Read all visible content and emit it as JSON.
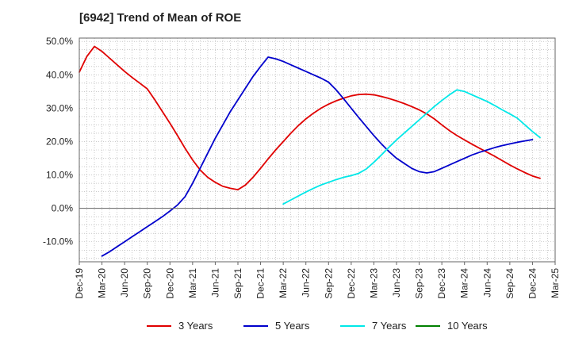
{
  "chart_data": {
    "type": "line",
    "title": "[6942]  Trend of Mean of ROE",
    "xlabel": "",
    "ylabel": "",
    "x_tick_labels": [
      "Dec-19",
      "Mar-20",
      "Jun-20",
      "Sep-20",
      "Dec-20",
      "Mar-21",
      "Jun-21",
      "Sep-21",
      "Dec-21",
      "Mar-22",
      "Jun-22",
      "Sep-22",
      "Dec-22",
      "Mar-23",
      "Jun-23",
      "Sep-23",
      "Dec-23",
      "Mar-24",
      "Jun-24",
      "Sep-24",
      "Dec-24",
      "Mar-25"
    ],
    "y_ticks": [
      -10,
      0,
      10,
      20,
      30,
      40,
      50
    ],
    "y_tick_labels": [
      "-10.0%",
      "0.0%",
      "10.0%",
      "20.0%",
      "30.0%",
      "40.0%",
      "50.0%"
    ],
    "ylim": [
      -16,
      51
    ],
    "grid": true,
    "legend_position": "bottom",
    "series": [
      {
        "name": "3 Years",
        "color": "#e00000",
        "points": [
          [
            "Dec-19",
            40.8
          ],
          [
            "Jan-20",
            45.5
          ],
          [
            "Feb-20",
            48.5
          ],
          [
            "Mar-20",
            47.0
          ],
          [
            "Apr-20",
            45.0
          ],
          [
            "May-20",
            43.0
          ],
          [
            "Jun-20",
            41.0
          ],
          [
            "Jul-20",
            39.2
          ],
          [
            "Aug-20",
            37.5
          ],
          [
            "Sep-20",
            35.8
          ],
          [
            "Oct-20",
            32.5
          ],
          [
            "Nov-20",
            29.0
          ],
          [
            "Dec-20",
            25.5
          ],
          [
            "Jan-21",
            21.8
          ],
          [
            "Feb-21",
            18.0
          ],
          [
            "Mar-21",
            14.5
          ],
          [
            "Apr-21",
            11.5
          ],
          [
            "May-21",
            9.3
          ],
          [
            "Jun-21",
            7.8
          ],
          [
            "Jul-21",
            6.6
          ],
          [
            "Aug-21",
            6.0
          ],
          [
            "Sep-21",
            5.6
          ],
          [
            "Oct-21",
            7.0
          ],
          [
            "Nov-21",
            9.3
          ],
          [
            "Dec-21",
            12.0
          ],
          [
            "Jan-22",
            14.8
          ],
          [
            "Feb-22",
            17.5
          ],
          [
            "Mar-22",
            20.0
          ],
          [
            "Apr-22",
            22.5
          ],
          [
            "May-22",
            24.8
          ],
          [
            "Jun-22",
            26.8
          ],
          [
            "Jul-22",
            28.5
          ],
          [
            "Aug-22",
            30.0
          ],
          [
            "Sep-22",
            31.2
          ],
          [
            "Oct-22",
            32.2
          ],
          [
            "Nov-22",
            33.0
          ],
          [
            "Dec-22",
            33.7
          ],
          [
            "Jan-23",
            34.1
          ],
          [
            "Feb-23",
            34.2
          ],
          [
            "Mar-23",
            34.0
          ],
          [
            "Apr-23",
            33.5
          ],
          [
            "May-23",
            32.9
          ],
          [
            "Jun-23",
            32.2
          ],
          [
            "Jul-23",
            31.4
          ],
          [
            "Aug-23",
            30.5
          ],
          [
            "Sep-23",
            29.5
          ],
          [
            "Oct-23",
            28.3
          ],
          [
            "Nov-23",
            26.8
          ],
          [
            "Dec-23",
            25.0
          ],
          [
            "Jan-24",
            23.3
          ],
          [
            "Feb-24",
            21.8
          ],
          [
            "Mar-24",
            20.5
          ],
          [
            "Apr-24",
            19.2
          ],
          [
            "May-24",
            18.0
          ],
          [
            "Jun-24",
            16.8
          ],
          [
            "Jul-24",
            15.6
          ],
          [
            "Aug-24",
            14.3
          ],
          [
            "Sep-24",
            13.0
          ],
          [
            "Oct-24",
            11.8
          ],
          [
            "Nov-24",
            10.7
          ],
          [
            "Dec-24",
            9.7
          ],
          [
            "Jan-25",
            9.0
          ]
        ]
      },
      {
        "name": "5 Years",
        "color": "#0000cc",
        "points": [
          [
            "Mar-20",
            -14.3
          ],
          [
            "Apr-20",
            -13.0
          ],
          [
            "May-20",
            -11.5
          ],
          [
            "Jun-20",
            -10.0
          ],
          [
            "Jul-20",
            -8.5
          ],
          [
            "Aug-20",
            -7.0
          ],
          [
            "Sep-20",
            -5.5
          ],
          [
            "Oct-20",
            -4.0
          ],
          [
            "Nov-20",
            -2.5
          ],
          [
            "Dec-20",
            -0.8
          ],
          [
            "Jan-21",
            1.0
          ],
          [
            "Feb-21",
            3.5
          ],
          [
            "Mar-21",
            7.5
          ],
          [
            "Apr-21",
            12.0
          ],
          [
            "May-21",
            16.5
          ],
          [
            "Jun-21",
            21.0
          ],
          [
            "Jul-21",
            25.0
          ],
          [
            "Aug-21",
            29.0
          ],
          [
            "Sep-21",
            32.5
          ],
          [
            "Oct-21",
            36.0
          ],
          [
            "Nov-21",
            39.5
          ],
          [
            "Dec-21",
            42.5
          ],
          [
            "Jan-22",
            45.3
          ],
          [
            "Feb-22",
            44.8
          ],
          [
            "Mar-22",
            44.0
          ],
          [
            "Apr-22",
            43.0
          ],
          [
            "May-22",
            42.0
          ],
          [
            "Jun-22",
            41.0
          ],
          [
            "Jul-22",
            40.0
          ],
          [
            "Aug-22",
            39.0
          ],
          [
            "Sep-22",
            37.8
          ],
          [
            "Oct-22",
            35.5
          ],
          [
            "Nov-22",
            32.8
          ],
          [
            "Dec-22",
            30.0
          ],
          [
            "Jan-23",
            27.2
          ],
          [
            "Feb-23",
            24.5
          ],
          [
            "Mar-23",
            21.8
          ],
          [
            "Apr-23",
            19.3
          ],
          [
            "May-23",
            17.0
          ],
          [
            "Jun-23",
            15.0
          ],
          [
            "Jul-23",
            13.5
          ],
          [
            "Aug-23",
            12.0
          ],
          [
            "Sep-23",
            11.0
          ],
          [
            "Oct-23",
            10.6
          ],
          [
            "Nov-23",
            11.0
          ],
          [
            "Dec-23",
            12.0
          ],
          [
            "Jan-24",
            13.0
          ],
          [
            "Feb-24",
            14.0
          ],
          [
            "Mar-24",
            15.0
          ],
          [
            "Apr-24",
            16.0
          ],
          [
            "May-24",
            16.8
          ],
          [
            "Jun-24",
            17.5
          ],
          [
            "Jul-24",
            18.2
          ],
          [
            "Aug-24",
            18.8
          ],
          [
            "Sep-24",
            19.3
          ],
          [
            "Oct-24",
            19.8
          ],
          [
            "Nov-24",
            20.2
          ],
          [
            "Dec-24",
            20.6
          ]
        ]
      },
      {
        "name": "7 Years",
        "color": "#00e8e8",
        "points": [
          [
            "Mar-22",
            1.3
          ],
          [
            "Apr-22",
            2.5
          ],
          [
            "May-22",
            3.7
          ],
          [
            "Jun-22",
            4.9
          ],
          [
            "Jul-22",
            6.0
          ],
          [
            "Aug-22",
            7.0
          ],
          [
            "Sep-22",
            7.8
          ],
          [
            "Oct-22",
            8.6
          ],
          [
            "Nov-22",
            9.3
          ],
          [
            "Dec-22",
            9.8
          ],
          [
            "Jan-23",
            10.5
          ],
          [
            "Feb-23",
            11.8
          ],
          [
            "Mar-23",
            13.8
          ],
          [
            "Apr-23",
            16.0
          ],
          [
            "May-23",
            18.3
          ],
          [
            "Jun-23",
            20.5
          ],
          [
            "Jul-23",
            22.5
          ],
          [
            "Aug-23",
            24.5
          ],
          [
            "Sep-23",
            26.5
          ],
          [
            "Oct-23",
            28.5
          ],
          [
            "Nov-23",
            30.5
          ],
          [
            "Dec-23",
            32.3
          ],
          [
            "Jan-24",
            34.0
          ],
          [
            "Feb-24",
            35.5
          ],
          [
            "Mar-24",
            35.0
          ],
          [
            "Apr-24",
            34.0
          ],
          [
            "May-24",
            33.0
          ],
          [
            "Jun-24",
            32.0
          ],
          [
            "Jul-24",
            30.8
          ],
          [
            "Aug-24",
            29.5
          ],
          [
            "Sep-24",
            28.3
          ],
          [
            "Oct-24",
            27.0
          ],
          [
            "Nov-24",
            25.0
          ],
          [
            "Dec-24",
            23.0
          ],
          [
            "Jan-25",
            21.2
          ]
        ]
      },
      {
        "name": "10 Years",
        "color": "#008000",
        "points": []
      }
    ]
  }
}
